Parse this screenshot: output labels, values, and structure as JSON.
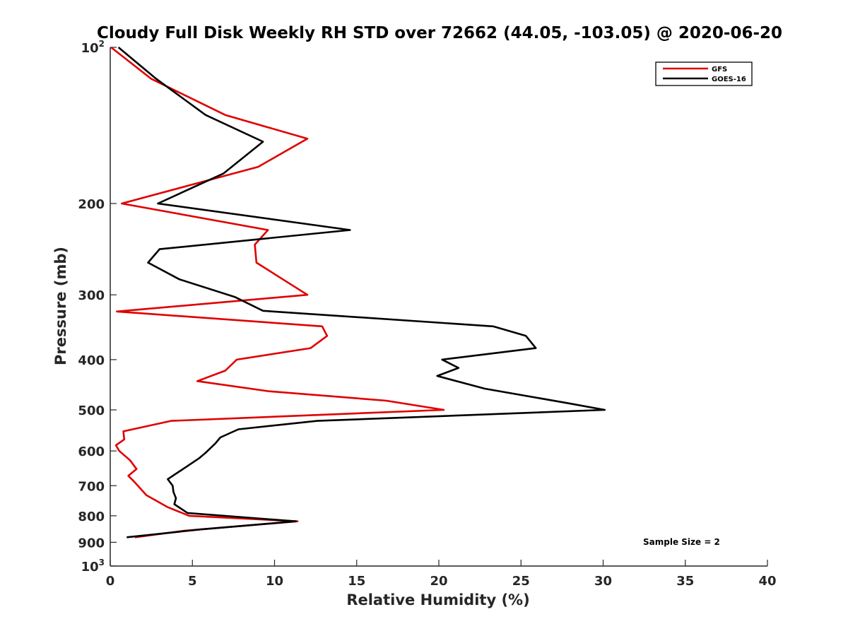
{
  "chart_data": {
    "type": "line",
    "title": "Cloudy Full Disk Weekly RH STD over 72662 (44.05, -103.05) @ 2020-06-20",
    "xlabel": "Relative Humidity (%)",
    "ylabel": "Pressure (mb)",
    "xlim": [
      0,
      40
    ],
    "ylim": [
      100,
      1000
    ],
    "yscale": "log",
    "y_reversed": true,
    "grid": false,
    "x_ticks": [
      "0",
      "5",
      "10",
      "15",
      "20",
      "25",
      "30",
      "35",
      "40"
    ],
    "y_ticks": [
      {
        "value": 100,
        "base": "10",
        "exp": "2"
      },
      {
        "value": 200,
        "label": "200"
      },
      {
        "value": 300,
        "label": "300"
      },
      {
        "value": 400,
        "label": "400"
      },
      {
        "value": 500,
        "label": "500"
      },
      {
        "value": 600,
        "label": "600"
      },
      {
        "value": 700,
        "label": "700"
      },
      {
        "value": 800,
        "label": "800"
      },
      {
        "value": 900,
        "label": "900"
      },
      {
        "value": 1000,
        "base": "10",
        "exp": "3"
      }
    ],
    "legend_position": "top-right",
    "annotation": "Sample Size = 2",
    "series": [
      {
        "name": "GFS",
        "color": "#e00000",
        "points": [
          [
            0.05,
            100
          ],
          [
            2.5,
            115
          ],
          [
            7.0,
            135
          ],
          [
            12.0,
            150
          ],
          [
            9.0,
            170
          ],
          [
            0.7,
            200
          ],
          [
            9.6,
            225
          ],
          [
            8.8,
            240
          ],
          [
            8.9,
            260
          ],
          [
            10.5,
            280
          ],
          [
            12.0,
            300
          ],
          [
            0.4,
            323
          ],
          [
            12.9,
            345
          ],
          [
            13.2,
            360
          ],
          [
            12.2,
            380
          ],
          [
            7.7,
            400
          ],
          [
            7.0,
            420
          ],
          [
            5.3,
            440
          ],
          [
            9.6,
            460
          ],
          [
            16.8,
            480
          ],
          [
            20.3,
            500
          ],
          [
            3.7,
            525
          ],
          [
            0.8,
            550
          ],
          [
            0.85,
            570
          ],
          [
            0.35,
            585
          ],
          [
            0.55,
            600
          ],
          [
            1.2,
            625
          ],
          [
            1.6,
            650
          ],
          [
            1.1,
            670
          ],
          [
            1.5,
            690
          ],
          [
            2.2,
            730
          ],
          [
            3.5,
            770
          ],
          [
            4.8,
            800
          ],
          [
            11.4,
            820
          ],
          [
            4.5,
            855
          ],
          [
            1.5,
            880
          ]
        ]
      },
      {
        "name": "GOES-16",
        "color": "#000000",
        "points": [
          [
            0.5,
            100
          ],
          [
            2.8,
            115
          ],
          [
            5.8,
            135
          ],
          [
            9.3,
            152
          ],
          [
            6.9,
            175
          ],
          [
            2.9,
            200
          ],
          [
            14.6,
            225
          ],
          [
            3.0,
            245
          ],
          [
            2.3,
            260
          ],
          [
            4.2,
            280
          ],
          [
            7.6,
            303
          ],
          [
            9.3,
            322
          ],
          [
            23.3,
            345
          ],
          [
            25.3,
            360
          ],
          [
            25.9,
            380
          ],
          [
            20.2,
            400
          ],
          [
            21.2,
            415
          ],
          [
            19.9,
            430
          ],
          [
            22.8,
            455
          ],
          [
            27.8,
            485
          ],
          [
            30.1,
            500
          ],
          [
            12.6,
            525
          ],
          [
            7.8,
            545
          ],
          [
            6.7,
            565
          ],
          [
            6.4,
            580
          ],
          [
            5.8,
            605
          ],
          [
            5.4,
            620
          ],
          [
            3.5,
            680
          ],
          [
            3.8,
            700
          ],
          [
            3.85,
            720
          ],
          [
            4.0,
            740
          ],
          [
            3.9,
            760
          ],
          [
            4.7,
            790
          ],
          [
            11.3,
            820
          ],
          [
            5.5,
            850
          ],
          [
            1.0,
            880
          ]
        ]
      }
    ]
  }
}
